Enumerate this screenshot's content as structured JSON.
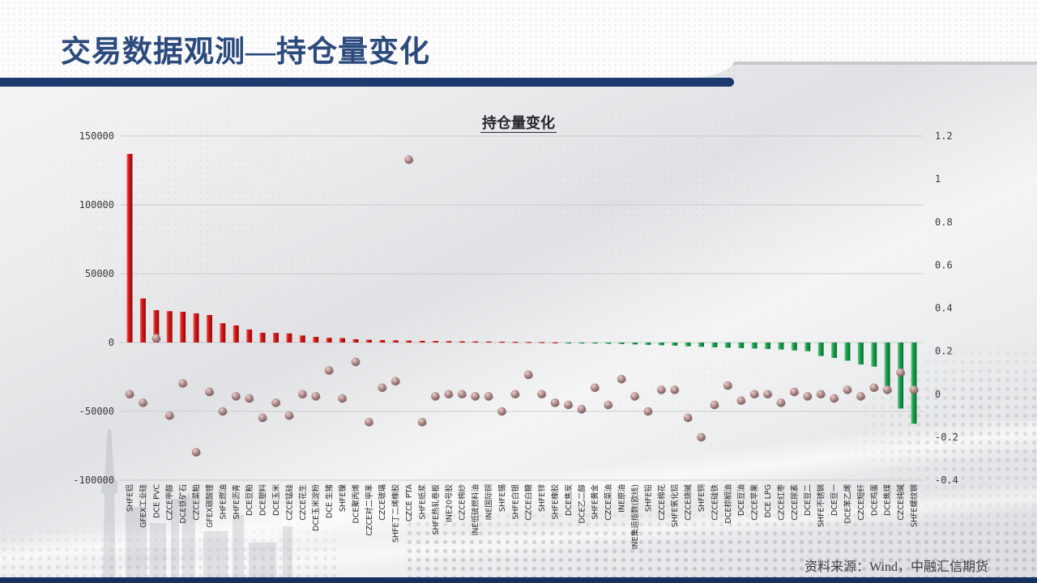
{
  "page": {
    "top_title": "交易数据观测—持仓量变化",
    "source_note": "资料来源：Wind，中融汇信期货"
  },
  "chart_data": {
    "type": "bar",
    "subtype": "bar-with-scatter-overlay",
    "title": "持仓量变化",
    "legend": "none",
    "grid": "horizontal",
    "left_axis": {
      "ticks": [
        "150000",
        "100000",
        "50000",
        "0",
        "-50000",
        "-100000"
      ],
      "range": [
        -100000,
        150000
      ]
    },
    "right_axis": {
      "ticks": [
        "1.2",
        "1",
        "0.8",
        "0.6",
        "0.4",
        "0.2",
        "0",
        "-0.2",
        "-0.4"
      ],
      "range": [
        -0.4,
        1.2
      ]
    },
    "categories": [
      "SHFE铝",
      "GFEX工业硅",
      "DCE PVC",
      "CZCE甲醇",
      "DCE铁矿石",
      "CZCE菜粕",
      "GFEX碳酸锂",
      "SHFE燃油",
      "SHFE沥青",
      "DCE豆粕",
      "DCE塑料",
      "DCE玉米",
      "CZCE锰硅",
      "CZCE花生",
      "DCE玉米淀粉",
      "DCE 生猪",
      "SHFE镍",
      "DCE聚丙烯",
      "CZCE对二甲苯",
      "CZCE玻璃",
      "SHFE丁二烯橡胶",
      "CZCE PTA",
      "SHFE纸浆",
      "SHFE热轧卷板",
      "INE20号胶",
      "CZCE棉纱",
      "INE低硫燃料油",
      "INE国际铜",
      "SHFE锡",
      "SHFE白银",
      "CZCE白糖",
      "SHFE锌",
      "SHFE橡胶",
      "DCE焦炭",
      "DCE乙二醇",
      "SHFE黄金",
      "CZCE菜油",
      "INE原油",
      "INE集运指数(欧线)",
      "SHFE铅",
      "CZCE棉花",
      "SHFE氧化铝",
      "CZCE烧碱",
      "SHFE铜",
      "CZCE硅铁",
      "DCE棕榈油",
      "DCE豆油",
      "CZCE苹果",
      "DCE LPG",
      "CZCE红枣",
      "CZCE尿素",
      "DCE豆二",
      "SHFE不锈钢",
      "DCE豆一",
      "DCE苯乙烯",
      "CZCE短纤",
      "DCE鸡蛋",
      "DCE焦煤",
      "CZCE纯碱",
      "SHFE螺纹钢"
    ],
    "series": [
      {
        "id": "bars",
        "type": "bar",
        "axis": "left",
        "values": [
          137000,
          32000,
          23500,
          22800,
          22300,
          21200,
          20000,
          14000,
          12400,
          9500,
          7100,
          7000,
          6600,
          5100,
          4100,
          3400,
          3200,
          2400,
          2000,
          1800,
          1600,
          1400,
          1200,
          1100,
          1000,
          900,
          800,
          700,
          600,
          500,
          400,
          300,
          100,
          -300,
          -500,
          -700,
          -900,
          -1100,
          -1400,
          -1700,
          -2000,
          -2300,
          -2700,
          -3100,
          -3500,
          -3800,
          -4100,
          -4400,
          -4700,
          -5100,
          -5700,
          -6300,
          -9800,
          -11200,
          -13200,
          -16000,
          -17500,
          -34000,
          -48000,
          -59000
        ]
      },
      {
        "id": "dots",
        "type": "scatter",
        "axis": "right",
        "values": [
          0.0,
          -0.04,
          0.26,
          -0.1,
          0.05,
          -0.27,
          0.01,
          -0.08,
          -0.01,
          -0.02,
          -0.11,
          -0.04,
          -0.1,
          0.0,
          -0.01,
          0.11,
          -0.02,
          0.15,
          -0.13,
          0.03,
          0.06,
          1.09,
          -0.13,
          -0.01,
          0.0,
          0.0,
          -0.01,
          -0.01,
          -0.08,
          0.0,
          0.09,
          0.0,
          -0.04,
          -0.05,
          -0.07,
          0.03,
          -0.05,
          0.07,
          -0.01,
          -0.08,
          0.02,
          0.02,
          -0.11,
          -0.2,
          -0.05,
          0.04,
          -0.03,
          0.0,
          0.0,
          -0.04,
          0.01,
          -0.01,
          0.0,
          -0.02,
          0.02,
          -0.01,
          0.03,
          0.02,
          0.1,
          0.02
        ]
      }
    ],
    "colors": {
      "bar_positive": "#cf1212",
      "bar_negative": "#15a14c",
      "dot": "#9a7b7b",
      "grid": "#c6c7c9",
      "accent_navy": "#1c3a6e"
    }
  }
}
